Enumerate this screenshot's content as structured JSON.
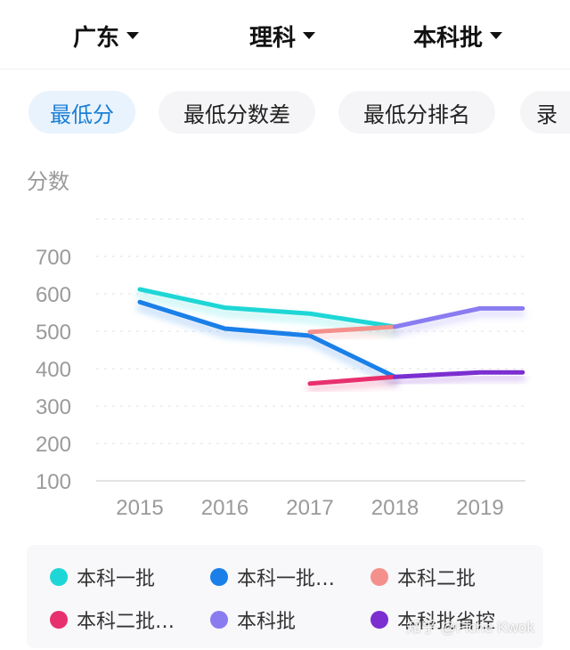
{
  "filters": {
    "province": "广东",
    "subject": "理科",
    "batch": "本科批"
  },
  "tabs": [
    "最低分",
    "最低分数差",
    "最低分排名",
    "录"
  ],
  "colors": {
    "accent": "#1a7fd6",
    "s1": "#1fd6d6",
    "s2": "#1a7fe8",
    "s3": "#f4908c",
    "s4": "#e8306e",
    "s5": "#8a7cf0",
    "s6": "#7b2fd0"
  },
  "chart_data": {
    "type": "line",
    "ylabel": "分数",
    "x": [
      "2015",
      "2016",
      "2017",
      "2018",
      "2019"
    ],
    "yticks": [
      100,
      200,
      300,
      400,
      500,
      600,
      700
    ],
    "ylim": [
      100,
      800
    ],
    "grid": true,
    "series": [
      {
        "name": "本科一批",
        "color": "#1fd6d6",
        "points": [
          [
            2015,
            612
          ],
          [
            2016,
            563
          ],
          [
            2017,
            547
          ],
          [
            2018,
            512
          ]
        ]
      },
      {
        "name": "本科一批…",
        "color": "#1a7fe8",
        "points": [
          [
            2015,
            578
          ],
          [
            2016,
            507
          ],
          [
            2017,
            488
          ],
          [
            2018,
            378
          ]
        ]
      },
      {
        "name": "本科二批",
        "color": "#f4908c",
        "points": [
          [
            2017,
            498
          ],
          [
            2018,
            512
          ]
        ]
      },
      {
        "name": "本科二批…",
        "color": "#e8306e",
        "points": [
          [
            2017,
            360
          ],
          [
            2018,
            378
          ]
        ]
      },
      {
        "name": "本科批",
        "color": "#8a7cf0",
        "points": [
          [
            2018,
            512
          ],
          [
            2019,
            561
          ],
          [
            2019.5,
            561
          ]
        ]
      },
      {
        "name": "本科批省控",
        "color": "#7b2fd0",
        "points": [
          [
            2018,
            378
          ],
          [
            2019,
            390
          ],
          [
            2019.5,
            390
          ]
        ]
      }
    ]
  },
  "watermark": "知乎 @Fiche Kwok"
}
